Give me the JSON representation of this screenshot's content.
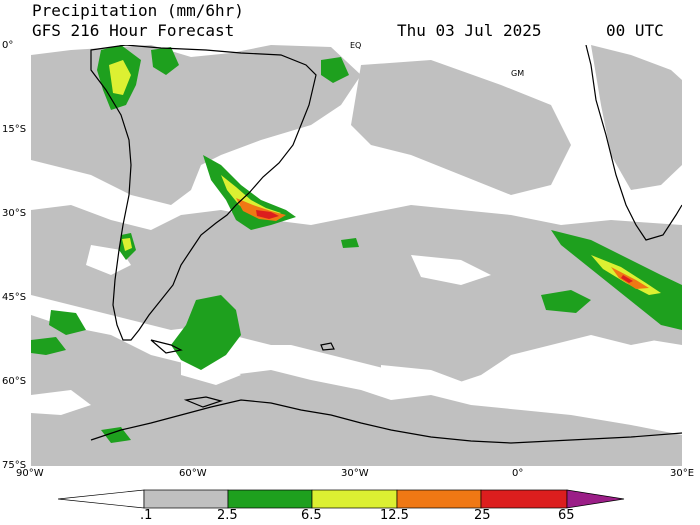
{
  "header": {
    "title_line1": "Precipitation (mm/6hr)",
    "title_line2": "GFS 216 Hour Forecast",
    "date": "Thu 03 Jul 2025",
    "time": "00 UTC"
  },
  "map": {
    "projection": "cylindrical-equidistant",
    "lon_range": [
      -90,
      30
    ],
    "lat_range": [
      -75,
      0
    ],
    "lat_labels": [
      "0°",
      "15°S",
      "30°S",
      "45°S",
      "60°S",
      "75°S"
    ],
    "lon_labels": [
      "90°W",
      "60°W",
      "30°W",
      "0°",
      "30°E"
    ],
    "place_labels": [
      "EQ",
      "GM"
    ],
    "background": "#ffffff",
    "coastline_color": "#000000"
  },
  "colorbar": {
    "labels": [
      ".1",
      "2.5",
      "6.5",
      "12.5",
      "25",
      "65"
    ],
    "colors": [
      "#ffffff",
      "#c0c0c0",
      "#1ea01e",
      "#dcf032",
      "#f07814",
      "#dc1e1e",
      "#9b1e87"
    ]
  },
  "precip_colors": {
    "light": "#c0c0c0",
    "moderate": "#1ea01e",
    "heavy": "#dcf032",
    "intense": "#f07814",
    "extreme": "#dc1e1e"
  }
}
